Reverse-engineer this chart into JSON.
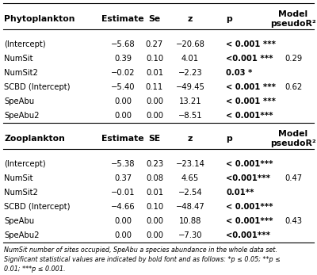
{
  "phyto_header": [
    "Phytoplankton",
    "Estimate",
    "Se",
    "z",
    "p",
    "Model\npseudoR²"
  ],
  "phyto_rows": [
    [
      "(Intercept)",
      "−5.68",
      "0.27",
      "−20.68",
      "< 0.001 ***",
      ""
    ],
    [
      "NumSit",
      "0.39",
      "0.10",
      "4.01",
      "<0.001 ***",
      "0.29"
    ],
    [
      "NumSit2",
      "−0.02",
      "0.01",
      "−2.23",
      "0.03 *",
      ""
    ],
    [
      "SCBD (Intercept)",
      "−5.40",
      "0.11",
      "−49.45",
      "< 0.001 ***",
      "0.62"
    ],
    [
      "SpeAbu",
      "0.00",
      "0.00",
      "13.21",
      "< 0.001 ***",
      ""
    ],
    [
      "SpeAbu2",
      "0.00",
      "0.00",
      "−8.51",
      "< 0.001***",
      ""
    ]
  ],
  "zoo_header": [
    "Zooplankton",
    "Estimate",
    "SE",
    "z",
    "p",
    "Model\npseudoR²"
  ],
  "zoo_rows": [
    [
      "(Intercept)",
      "−5.38",
      "0.23",
      "−23.14",
      "< 0.001***",
      ""
    ],
    [
      "NumSit",
      "0.37",
      "0.08",
      "4.65",
      "<0.001***",
      "0.47"
    ],
    [
      "NumSit2",
      "−0.01",
      "0.01",
      "−2.54",
      "0.01**",
      ""
    ],
    [
      "SCBD (Intercept)",
      "−4.66",
      "0.10",
      "−48.47",
      "< 0.001***",
      ""
    ],
    [
      "SpeAbu",
      "0.00",
      "0.00",
      "10.88",
      "< 0.001***",
      "0.43"
    ],
    [
      "SpeAbu2",
      "0.00",
      "0.00",
      "−7.30",
      "<0.001***",
      ""
    ]
  ],
  "footnote1": "NumSit number of sites occupied, SpeAbu a species abundance in the whole data set.",
  "footnote2": "Significant statistical values are indicated by bold font and as follows: *p ≤ 0.05; **p ≤",
  "footnote3": "0.01; ***p ≤ 0.001.",
  "bg_color": "#ffffff",
  "line_color": "#000000",
  "font_size": 7.2,
  "header_font_size": 7.8
}
